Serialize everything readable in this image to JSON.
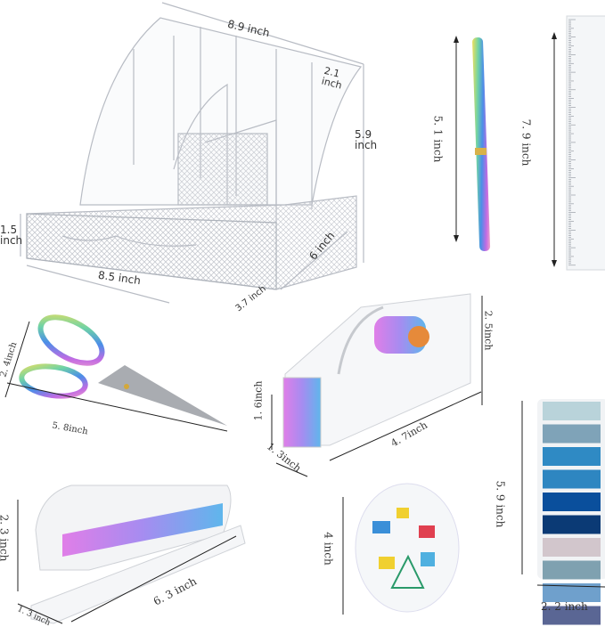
{
  "organizer": {
    "width_label": "8.9 inch",
    "depth_top_label": "2.1 inch",
    "height_label": "5.9 inch",
    "drawer_height_label": "1.5 inch",
    "drawer_width_label": "8.5 inch",
    "depth_label": "6 inch",
    "drawer_depth_label": "3.7 inch"
  },
  "pen": {
    "length_label": "5. 1  inch"
  },
  "ruler": {
    "length_label": "7. 9  inch"
  },
  "scissors": {
    "height_label": "2. 4inch",
    "length_label": "5. 8inch"
  },
  "tape_dispenser": {
    "height_label": "2. 5inch",
    "front_height_label": "1. 6inch",
    "width_label": "1. 3inch",
    "length_label": "4. 7inch"
  },
  "sticky_tabs": {
    "height_label": "5. 9  inch",
    "width_label": "2. 2  inch",
    "colors": [
      "#b9d3da",
      "#7fa3b8",
      "#2f8ac4",
      "#2e86c1",
      "#0a4f9c",
      "#0b3a75",
      "#d2c6cc",
      "#7fa1b0",
      "#6fa0cc",
      "#5a6694"
    ]
  },
  "stapler": {
    "height_label": "2. 3  inch",
    "length_label": "6. 3  inch",
    "width_label": "1. 3  inch"
  },
  "clips_box": {
    "height_label": "4  inch"
  }
}
